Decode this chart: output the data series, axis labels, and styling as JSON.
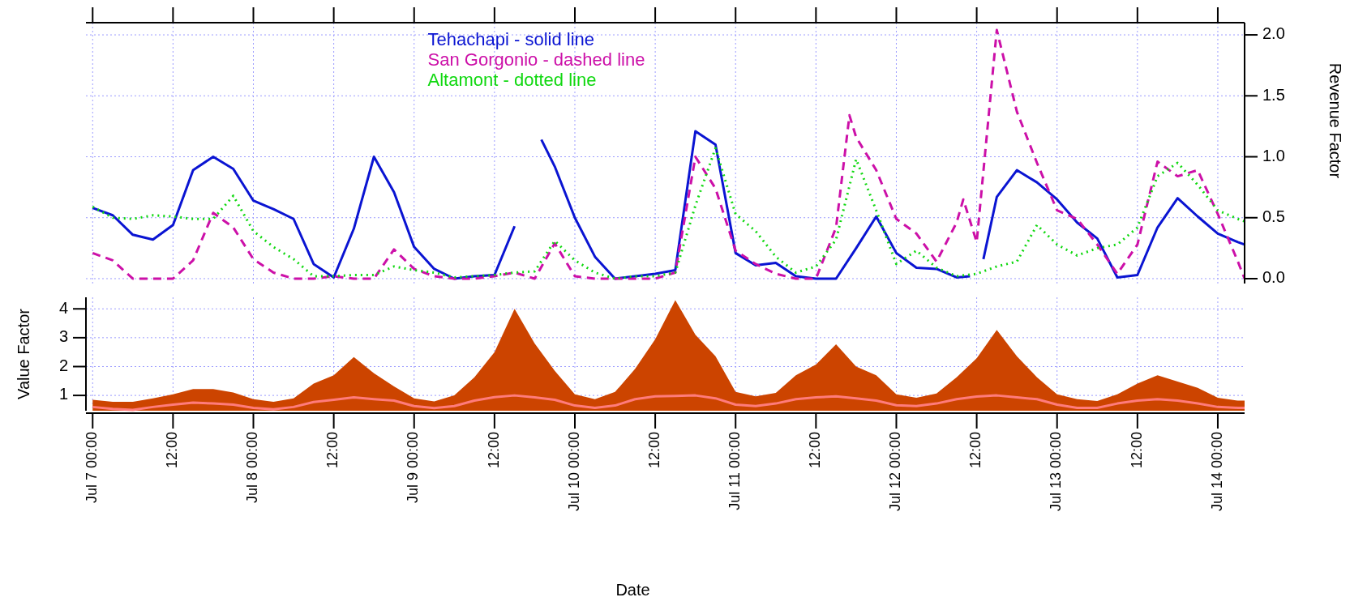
{
  "chart_data": [
    {
      "type": "line",
      "ylabel": "Revenue Factor",
      "x": [
        "--07-07T00:00",
        "--07-07T03:00",
        "--07-07T06:00",
        "--07-07T09:00",
        "--07-07T12:00",
        "--07-07T15:00",
        "--07-07T18:00",
        "--07-07T21:00",
        "--07-08T00:00",
        "--07-08T03:00",
        "--07-08T06:00",
        "--07-08T09:00",
        "--07-08T12:00",
        "--07-08T15:00",
        "--07-08T18:00",
        "--07-08T21:00",
        "--07-09T00:00",
        "--07-09T03:00",
        "--07-09T06:00",
        "--07-09T09:00",
        "--07-09T12:00",
        "--07-09T15:00",
        "--07-09T18:00",
        "--07-09T21:00",
        "--07-10T00:00",
        "--07-10T03:00",
        "--07-10T06:00",
        "--07-10T09:00",
        "--07-10T12:00",
        "--07-10T15:00",
        "--07-10T18:00",
        "--07-10T21:00",
        "--07-11T00:00",
        "--07-11T03:00",
        "--07-11T06:00",
        "--07-11T09:00",
        "--07-11T12:00",
        "--07-11T15:00",
        "--07-11T18:00",
        "--07-11T21:00",
        "--07-12T00:00",
        "--07-12T03:00",
        "--07-12T06:00",
        "--07-12T09:00",
        "--07-12T12:00",
        "--07-12T15:00",
        "--07-12T18:00",
        "--07-12T21:00",
        "--07-13T00:00",
        "--07-13T03:00",
        "--07-13T06:00",
        "--07-13T09:00",
        "--07-13T12:00",
        "--07-13T15:00",
        "--07-13T18:00",
        "--07-13T21:00",
        "--07-14T00:00",
        "--07-14T03:00",
        "--07-14T04:00"
      ],
      "series": [
        {
          "name": "Tehachapi - solid line",
          "color": "#0a14d2",
          "line_style": "solid",
          "x": [
            "--07-07T00:00",
            "--07-07T03:00",
            "--07-07T06:00",
            "--07-07T09:00",
            "--07-07T12:00",
            "--07-07T15:00",
            "--07-07T18:00",
            "--07-07T21:00",
            "--07-08T00:00",
            "--07-08T03:00",
            "--07-08T06:00",
            "--07-08T09:00",
            "--07-08T12:00",
            "--07-08T15:00",
            "--07-08T18:00",
            "--07-08T21:00",
            "--07-09T00:00",
            "--07-09T03:00",
            "--07-09T06:00",
            "--07-09T09:00",
            "--07-09T12:00",
            "--07-09T15:00",
            "--07-09T16:30",
            "--07-09T19:00",
            "--07-09T21:00",
            "--07-10T00:00",
            "--07-10T03:00",
            "--07-10T06:00",
            "--07-10T09:00",
            "--07-10T12:00",
            "--07-10T15:00",
            "--07-10T18:00",
            "--07-10T21:00",
            "--07-11T00:00",
            "--07-11T03:00",
            "--07-11T06:00",
            "--07-11T09:00",
            "--07-11T12:00",
            "--07-11T15:00",
            "--07-11T18:00",
            "--07-11T21:00",
            "--07-12T00:00",
            "--07-12T03:00",
            "--07-12T06:00",
            "--07-12T09:00",
            "--07-12T11:00",
            "--07-12T12:00",
            "--07-12T13:00",
            "--07-12T15:00",
            "--07-12T18:00",
            "--07-12T21:00",
            "--07-13T00:00",
            "--07-13T03:00",
            "--07-13T06:00",
            "--07-13T09:00",
            "--07-13T12:00",
            "--07-13T15:00",
            "--07-13T18:00",
            "--07-13T21:00",
            "--07-14T00:00",
            "--07-14T03:00",
            "--07-14T04:00"
          ],
          "values": [
            0.58,
            0.52,
            0.36,
            0.32,
            0.44,
            0.89,
            1.0,
            0.9,
            0.64,
            0.57,
            0.49,
            0.12,
            0.01,
            0.41,
            1.0,
            0.71,
            0.26,
            0.08,
            0.0,
            0.02,
            0.03,
            0.43,
            null,
            1.14,
            0.92,
            0.5,
            0.18,
            0.0,
            0.02,
            0.04,
            0.07,
            1.21,
            1.1,
            0.21,
            0.11,
            0.13,
            0.02,
            0.0,
            0.0,
            0.25,
            0.51,
            0.21,
            0.09,
            0.08,
            0.01,
            0.02,
            null,
            0.16,
            0.67,
            0.89,
            0.79,
            0.65,
            0.46,
            0.33,
            0.01,
            0.03,
            0.42,
            0.66,
            0.51,
            0.37,
            0.3,
            0.28
          ]
        },
        {
          "name": "San Gorgonio - dashed line",
          "color": "#cc10a8",
          "line_style": "dashed",
          "x": [
            "--07-07T00:00",
            "--07-07T03:00",
            "--07-07T06:00",
            "--07-07T09:00",
            "--07-07T12:00",
            "--07-07T15:00",
            "--07-07T18:00",
            "--07-07T21:00",
            "--07-08T00:00",
            "--07-08T03:00",
            "--07-08T06:00",
            "--07-08T09:00",
            "--07-08T12:00",
            "--07-08T15:00",
            "--07-08T18:00",
            "--07-08T21:00",
            "--07-09T00:00",
            "--07-09T03:00",
            "--07-09T06:00",
            "--07-09T09:00",
            "--07-09T12:00",
            "--07-09T15:00",
            "--07-09T18:00",
            "--07-09T21:00",
            "--07-10T00:00",
            "--07-10T03:00",
            "--07-10T06:00",
            "--07-10T09:00",
            "--07-10T12:00",
            "--07-10T15:00",
            "--07-10T18:00",
            "--07-10T21:00",
            "--07-11T00:00",
            "--07-11T03:00",
            "--07-11T06:00",
            "--07-11T09:00",
            "--07-11T12:00",
            "--07-11T15:00",
            "--07-11T17:00",
            "--07-11T18:00",
            "--07-11T21:00",
            "--07-12T00:00",
            "--07-12T03:00",
            "--07-12T06:00",
            "--07-12T09:00",
            "--07-12T10:00",
            "--07-12T12:00",
            "--07-12T15:00",
            "--07-12T18:00",
            "--07-12T21:00",
            "--07-13T00:00",
            "--07-13T03:00",
            "--07-13T06:00",
            "--07-13T09:00",
            "--07-13T12:00",
            "--07-13T15:00",
            "--07-13T18:00",
            "--07-13T21:00",
            "--07-14T00:00",
            "--07-14T03:00",
            "--07-14T04:00"
          ],
          "values": [
            0.21,
            0.15,
            0,
            0,
            0,
            0.15,
            0.54,
            0.42,
            0.16,
            0.05,
            0,
            0,
            0.02,
            0,
            0,
            0.24,
            0.08,
            0.02,
            0,
            0,
            0.02,
            0.05,
            0,
            0.29,
            0.02,
            0,
            0,
            0,
            0,
            0.05,
            1.0,
            0.74,
            0.23,
            0.12,
            0.04,
            0,
            0,
            0.42,
            1.34,
            1.16,
            0.89,
            0.49,
            0.37,
            0.14,
            0.46,
            0.65,
            0.3,
            2.04,
            1.37,
            0.95,
            0.56,
            0.49,
            0.28,
            0.04,
            0.28,
            0.96,
            0.84,
            0.89,
            0.53,
            0.14,
            0
          ]
        },
        {
          "name": "Altamont - dotted line",
          "color": "#10d810",
          "line_style": "dotted",
          "values": [
            0.59,
            0.5,
            0.49,
            0.52,
            0.51,
            0.49,
            0.49,
            0.68,
            0.39,
            0.26,
            0.16,
            0.02,
            0.02,
            0.03,
            0.03,
            0.1,
            0.07,
            0.05,
            0.01,
            0.02,
            0.03,
            0.05,
            0.06,
            0.31,
            0.15,
            0.05,
            0,
            0.02,
            0.02,
            0.05,
            0.6,
            1.07,
            0.53,
            0.39,
            0.18,
            0.05,
            0.1,
            0.32,
            0.98,
            0.56,
            0.12,
            0.23,
            0.09,
            0.02,
            0.04,
            0.1,
            0.14,
            0.44,
            0.28,
            0.19,
            0.25,
            0.28,
            0.42,
            0.84,
            0.95,
            0.77,
            0.56,
            0.49,
            0.47
          ]
        }
      ],
      "xlim": [
        "--07-06T23:00",
        "--07-14T04:00"
      ],
      "xticks": [
        {
          "value": "--07-07T00:00",
          "label": null
        },
        {
          "value": "--07-07T12:00",
          "label": null
        },
        {
          "value": "--07-08T00:00",
          "label": null
        },
        {
          "value": "--07-08T12:00",
          "label": null
        },
        {
          "value": "--07-09T00:00",
          "label": null
        },
        {
          "value": "--07-09T12:00",
          "label": null
        },
        {
          "value": "--07-10T00:00",
          "label": null
        },
        {
          "value": "--07-10T12:00",
          "label": null
        },
        {
          "value": "--07-11T00:00",
          "label": null
        },
        {
          "value": "--07-11T12:00",
          "label": null
        },
        {
          "value": "--07-12T00:00",
          "label": null
        },
        {
          "value": "--07-12T12:00",
          "label": null
        },
        {
          "value": "--07-13T00:00",
          "label": null
        },
        {
          "value": "--07-13T12:00",
          "label": null
        },
        {
          "value": "--07-14T00:00",
          "label": null
        }
      ],
      "ylim": [
        -0.04,
        2.1
      ],
      "yticks": [
        {
          "value": 0,
          "label": "0.0"
        },
        0.5,
        {
          "value": 1,
          "label": "1.0"
        },
        1.5,
        {
          "value": 2,
          "label": "2.0"
        }
      ],
      "grid": true,
      "legend": "top",
      "tick_labels": "y"
    },
    {
      "type": "area",
      "xlabel": "Date",
      "ylabel": "Value Factor",
      "x": [
        "--07-07T00:00",
        "--07-07T03:00",
        "--07-07T06:00",
        "--07-07T09:00",
        "--07-07T12:00",
        "--07-07T15:00",
        "--07-07T18:00",
        "--07-07T21:00",
        "--07-08T00:00",
        "--07-08T03:00",
        "--07-08T06:00",
        "--07-08T09:00",
        "--07-08T12:00",
        "--07-08T15:00",
        "--07-08T18:00",
        "--07-08T21:00",
        "--07-09T00:00",
        "--07-09T03:00",
        "--07-09T06:00",
        "--07-09T09:00",
        "--07-09T12:00",
        "--07-09T15:00",
        "--07-09T18:00",
        "--07-09T21:00",
        "--07-10T00:00",
        "--07-10T03:00",
        "--07-10T06:00",
        "--07-10T09:00",
        "--07-10T12:00",
        "--07-10T15:00",
        "--07-10T18:00",
        "--07-10T21:00",
        "--07-11T00:00",
        "--07-11T03:00",
        "--07-11T06:00",
        "--07-11T09:00",
        "--07-11T12:00",
        "--07-11T15:00",
        "--07-11T18:00",
        "--07-11T21:00",
        "--07-12T00:00",
        "--07-12T03:00",
        "--07-12T06:00",
        "--07-12T09:00",
        "--07-12T12:00",
        "--07-12T15:00",
        "--07-12T18:00",
        "--07-12T21:00",
        "--07-13T00:00",
        "--07-13T03:00",
        "--07-13T06:00",
        "--07-13T09:00",
        "--07-13T12:00",
        "--07-13T15:00",
        "--07-13T18:00",
        "--07-13T21:00",
        "--07-14T00:00",
        "--07-14T03:00",
        "--07-14T04:00"
      ],
      "series": [
        {
          "color": "#cc4400",
          "values": [
            0.85,
            0.78,
            0.78,
            0.9,
            1.04,
            1.22,
            1.22,
            1.1,
            0.87,
            0.78,
            0.9,
            1.41,
            1.7,
            2.33,
            1.77,
            1.31,
            0.9,
            0.79,
            1.0,
            1.63,
            2.5,
            4.0,
            2.8,
            1.85,
            1.04,
            0.87,
            1.12,
            1.92,
            2.95,
            4.3,
            3.1,
            2.36,
            1.12,
            0.97,
            1.09,
            1.7,
            2.07,
            2.77,
            2.0,
            1.7,
            1.04,
            0.92,
            1.07,
            1.63,
            2.29,
            3.27,
            2.36,
            1.63,
            1.04,
            0.87,
            0.81,
            1.04,
            1.41,
            1.7,
            1.48,
            1.26,
            0.92,
            0.82,
            0.82
          ]
        },
        {
          "type": "line",
          "color": "#ff7b7b",
          "values": [
            0.6,
            0.53,
            0.5,
            0.6,
            0.68,
            0.75,
            0.72,
            0.68,
            0.57,
            0.52,
            0.6,
            0.77,
            0.85,
            0.93,
            0.87,
            0.82,
            0.63,
            0.56,
            0.63,
            0.82,
            0.94,
            1.0,
            0.93,
            0.85,
            0.65,
            0.57,
            0.65,
            0.87,
            0.97,
            0.98,
            1.0,
            0.9,
            0.68,
            0.63,
            0.72,
            0.87,
            0.93,
            0.97,
            0.9,
            0.82,
            0.66,
            0.63,
            0.72,
            0.87,
            0.96,
            1.0,
            0.93,
            0.87,
            0.68,
            0.57,
            0.57,
            0.72,
            0.82,
            0.87,
            0.82,
            0.72,
            0.6,
            0.57,
            0.57
          ]
        }
      ],
      "xlim": [
        "--07-06T23:00",
        "--07-14T04:00"
      ],
      "xticks": [
        {
          "value": "--07-07T00:00",
          "label": "Jul 7 00:00"
        },
        {
          "value": "--07-07T12:00",
          "label": "12:00"
        },
        {
          "value": "--07-08T00:00",
          "label": "Jul 8 00:00"
        },
        {
          "value": "--07-08T12:00",
          "label": "12:00"
        },
        {
          "value": "--07-09T00:00",
          "label": "Jul 9 00:00"
        },
        {
          "value": "--07-09T12:00",
          "label": "12:00"
        },
        {
          "value": "--07-10T00:00",
          "label": "Jul 10 00:00"
        },
        {
          "value": "--07-10T12:00",
          "label": "12:00"
        },
        {
          "value": "--07-11T00:00",
          "label": "Jul 11 00:00"
        },
        {
          "value": "--07-11T12:00",
          "label": "12:00"
        },
        {
          "value": "--07-12T00:00",
          "label": "Jul 12 00:00"
        },
        {
          "value": "--07-12T12:00",
          "label": "12:00"
        },
        {
          "value": "--07-13T00:00",
          "label": "Jul 13 00:00"
        },
        {
          "value": "--07-13T12:00",
          "label": "12:00"
        },
        {
          "value": "--07-14T00:00",
          "label": "Jul 14 00:00"
        }
      ],
      "ylim": [
        0.47,
        4.4
      ],
      "yticks": [
        1,
        2,
        3,
        4
      ],
      "grid": true
    }
  ]
}
